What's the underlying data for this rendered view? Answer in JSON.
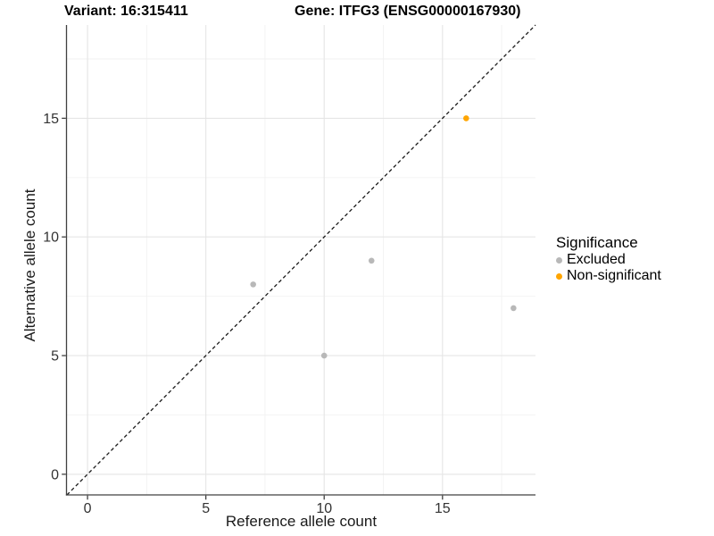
{
  "chart_data": {
    "type": "scatter",
    "titles": [
      "Variant: 16:315411",
      "Gene: ITFG3 (ENSG00000167930)"
    ],
    "xlabel": "Reference allele count",
    "ylabel": "Alternative allele count",
    "x_ticks": [
      0,
      5,
      10,
      15
    ],
    "y_ticks": [
      0,
      5,
      10,
      15
    ],
    "minor_ticks": [
      2.5,
      7.5,
      12.5,
      17.5
    ],
    "xlim": [
      -0.87,
      18.93
    ],
    "ylim": [
      -0.87,
      18.93
    ],
    "grid": true,
    "identity_line": {
      "style": "dashed",
      "slope": 1,
      "intercept": 0,
      "color": "#1a1a1a"
    },
    "series": [
      {
        "name": "Excluded",
        "color": "#B8B8B8",
        "points": [
          [
            7,
            8
          ],
          [
            10,
            5
          ],
          [
            12,
            9
          ],
          [
            18,
            7
          ]
        ]
      },
      {
        "name": "Non-significant",
        "color": "#FFA500",
        "points": [
          [
            16,
            15
          ]
        ]
      }
    ],
    "legend": {
      "title": "Significance",
      "position": "right",
      "entries": [
        {
          "label": "Excluded",
          "color": "#B8B8B8"
        },
        {
          "label": "Non-significant",
          "color": "#FFA500"
        }
      ]
    }
  }
}
